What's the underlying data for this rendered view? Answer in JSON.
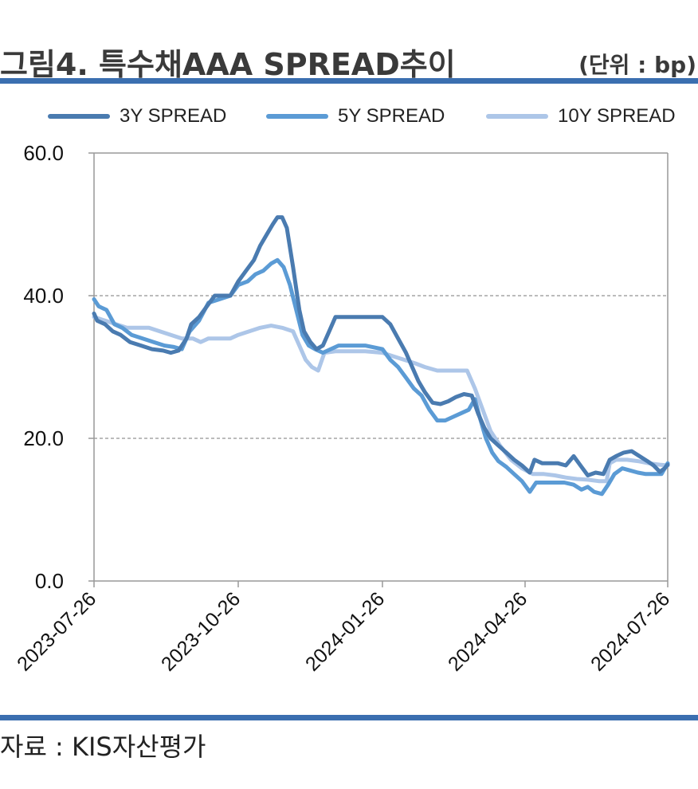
{
  "header": {
    "title": "그림4. 특수채AAA SPREAD추이",
    "unit": "(단위 : bp)"
  },
  "source": "자료 : KIS자산평가",
  "chart_data": {
    "type": "line",
    "ylim": [
      0,
      60
    ],
    "yticks": [
      "0.0",
      "20.0",
      "40.0",
      "60.0"
    ],
    "xticks": [
      "2023-07-26",
      "2023-10-26",
      "2024-01-26",
      "2024-04-26",
      "2024-07-26"
    ],
    "grid": "horizontal dashed at 20 and 40",
    "legend": "top",
    "x_start": "2023-07-26",
    "x_end": "2024-07-26",
    "series": [
      {
        "name": "3Y SPREAD",
        "color": "#4a7bb0",
        "points": [
          [
            "2023-07-26",
            37.5
          ],
          [
            "2023-07-28",
            36.5
          ],
          [
            "2023-08-02",
            36.0
          ],
          [
            "2023-08-07",
            35.0
          ],
          [
            "2023-08-12",
            34.5
          ],
          [
            "2023-08-18",
            33.5
          ],
          [
            "2023-08-25",
            33.0
          ],
          [
            "2023-09-01",
            32.5
          ],
          [
            "2023-09-08",
            32.3
          ],
          [
            "2023-09-13",
            32.0
          ],
          [
            "2023-09-18",
            32.3
          ],
          [
            "2023-09-23",
            34.0
          ],
          [
            "2023-09-26",
            36.0
          ],
          [
            "2023-10-01",
            37.0
          ],
          [
            "2023-10-06",
            38.5
          ],
          [
            "2023-10-11",
            40.0
          ],
          [
            "2023-10-16",
            40.0
          ],
          [
            "2023-10-21",
            40.0
          ],
          [
            "2023-10-26",
            42.0
          ],
          [
            "2023-10-31",
            43.5
          ],
          [
            "2023-11-05",
            45.0
          ],
          [
            "2023-11-09",
            47.0
          ],
          [
            "2023-11-13",
            48.5
          ],
          [
            "2023-11-17",
            50.0
          ],
          [
            "2023-11-20",
            51.0
          ],
          [
            "2023-11-23",
            51.0
          ],
          [
            "2023-11-26",
            49.5
          ],
          [
            "2023-11-30",
            44.0
          ],
          [
            "2023-12-04",
            38.0
          ],
          [
            "2023-12-07",
            35.0
          ],
          [
            "2023-12-11",
            33.5
          ],
          [
            "2023-12-15",
            32.5
          ],
          [
            "2023-12-19",
            33.0
          ],
          [
            "2023-12-23",
            35.0
          ],
          [
            "2023-12-27",
            37.0
          ],
          [
            "2024-01-01",
            37.0
          ],
          [
            "2024-01-10",
            37.0
          ],
          [
            "2024-01-19",
            37.0
          ],
          [
            "2024-01-26",
            37.0
          ],
          [
            "2024-01-31",
            36.0
          ],
          [
            "2024-02-05",
            34.0
          ],
          [
            "2024-02-10",
            32.0
          ],
          [
            "2024-02-14",
            30.0
          ],
          [
            "2024-02-18",
            28.0
          ],
          [
            "2024-02-22",
            26.5
          ],
          [
            "2024-02-27",
            25.0
          ],
          [
            "2024-03-03",
            24.8
          ],
          [
            "2024-03-08",
            25.2
          ],
          [
            "2024-03-13",
            25.8
          ],
          [
            "2024-03-18",
            26.2
          ],
          [
            "2024-03-23",
            26.0
          ],
          [
            "2024-03-27",
            23.5
          ],
          [
            "2024-03-31",
            21.5
          ],
          [
            "2024-04-04",
            20.0
          ],
          [
            "2024-04-09",
            19.0
          ],
          [
            "2024-04-14",
            18.0
          ],
          [
            "2024-04-19",
            17.0
          ],
          [
            "2024-04-24",
            16.2
          ],
          [
            "2024-04-29",
            15.2
          ],
          [
            "2024-05-02",
            17.0
          ],
          [
            "2024-05-07",
            16.5
          ],
          [
            "2024-05-12",
            16.5
          ],
          [
            "2024-05-17",
            16.5
          ],
          [
            "2024-05-22",
            16.2
          ],
          [
            "2024-05-27",
            17.5
          ],
          [
            "2024-06-01",
            16.0
          ],
          [
            "2024-06-05",
            14.8
          ],
          [
            "2024-06-10",
            15.2
          ],
          [
            "2024-06-15",
            15.0
          ],
          [
            "2024-06-19",
            17.0
          ],
          [
            "2024-06-23",
            17.5
          ],
          [
            "2024-06-28",
            18.0
          ],
          [
            "2024-07-03",
            18.2
          ],
          [
            "2024-07-08",
            17.5
          ],
          [
            "2024-07-13",
            16.8
          ],
          [
            "2024-07-17",
            16.2
          ],
          [
            "2024-07-21",
            15.3
          ],
          [
            "2024-07-24",
            15.8
          ],
          [
            "2024-07-26",
            16.3
          ]
        ]
      },
      {
        "name": "5Y SPREAD",
        "color": "#5b9bd5",
        "points": [
          [
            "2023-07-26",
            39.5
          ],
          [
            "2023-07-29",
            38.5
          ],
          [
            "2023-08-03",
            38.0
          ],
          [
            "2023-08-08",
            36.0
          ],
          [
            "2023-08-13",
            35.5
          ],
          [
            "2023-08-19",
            34.5
          ],
          [
            "2023-08-26",
            34.0
          ],
          [
            "2023-09-02",
            33.5
          ],
          [
            "2023-09-09",
            33.0
          ],
          [
            "2023-09-15",
            32.8
          ],
          [
            "2023-09-20",
            32.5
          ],
          [
            "2023-09-25",
            35.0
          ],
          [
            "2023-10-01",
            36.5
          ],
          [
            "2023-10-07",
            39.0
          ],
          [
            "2023-10-14",
            39.5
          ],
          [
            "2023-10-21",
            40.0
          ],
          [
            "2023-10-26",
            41.5
          ],
          [
            "2023-11-01",
            42.0
          ],
          [
            "2023-11-06",
            43.0
          ],
          [
            "2023-11-11",
            43.5
          ],
          [
            "2023-11-16",
            44.5
          ],
          [
            "2023-11-20",
            45.0
          ],
          [
            "2023-11-24",
            44.0
          ],
          [
            "2023-11-28",
            41.5
          ],
          [
            "2023-12-02",
            38.0
          ],
          [
            "2023-12-06",
            34.5
          ],
          [
            "2023-12-10",
            33.0
          ],
          [
            "2023-12-14",
            32.5
          ],
          [
            "2023-12-19",
            32.0
          ],
          [
            "2023-12-24",
            32.5
          ],
          [
            "2023-12-29",
            33.0
          ],
          [
            "2024-01-05",
            33.0
          ],
          [
            "2024-01-15",
            33.0
          ],
          [
            "2024-01-26",
            32.5
          ],
          [
            "2024-01-31",
            31.0
          ],
          [
            "2024-02-05",
            30.0
          ],
          [
            "2024-02-10",
            28.5
          ],
          [
            "2024-02-15",
            27.0
          ],
          [
            "2024-02-20",
            26.0
          ],
          [
            "2024-02-25",
            24.0
          ],
          [
            "2024-03-01",
            22.5
          ],
          [
            "2024-03-06",
            22.5
          ],
          [
            "2024-03-11",
            23.0
          ],
          [
            "2024-03-16",
            23.5
          ],
          [
            "2024-03-21",
            24.0
          ],
          [
            "2024-03-25",
            25.5
          ],
          [
            "2024-03-28",
            23.0
          ],
          [
            "2024-04-01",
            20.0
          ],
          [
            "2024-04-05",
            18.0
          ],
          [
            "2024-04-09",
            16.8
          ],
          [
            "2024-04-14",
            16.0
          ],
          [
            "2024-04-19",
            15.0
          ],
          [
            "2024-04-24",
            14.0
          ],
          [
            "2024-04-29",
            12.5
          ],
          [
            "2024-05-03",
            13.8
          ],
          [
            "2024-05-09",
            13.8
          ],
          [
            "2024-05-15",
            13.8
          ],
          [
            "2024-05-21",
            13.8
          ],
          [
            "2024-05-27",
            13.5
          ],
          [
            "2024-06-01",
            12.8
          ],
          [
            "2024-06-05",
            13.2
          ],
          [
            "2024-06-09",
            12.5
          ],
          [
            "2024-06-14",
            12.2
          ],
          [
            "2024-06-18",
            13.5
          ],
          [
            "2024-06-22",
            15.0
          ],
          [
            "2024-06-27",
            15.8
          ],
          [
            "2024-07-02",
            15.5
          ],
          [
            "2024-07-07",
            15.2
          ],
          [
            "2024-07-12",
            15.0
          ],
          [
            "2024-07-17",
            15.0
          ],
          [
            "2024-07-22",
            15.0
          ],
          [
            "2024-07-26",
            16.5
          ]
        ]
      },
      {
        "name": "10Y SPREAD",
        "color": "#adc6e8",
        "points": [
          [
            "2023-07-26",
            37.0
          ],
          [
            "2023-08-02",
            36.5
          ],
          [
            "2023-08-09",
            36.0
          ],
          [
            "2023-08-16",
            35.5
          ],
          [
            "2023-08-23",
            35.5
          ],
          [
            "2023-08-30",
            35.5
          ],
          [
            "2023-09-06",
            35.0
          ],
          [
            "2023-09-13",
            34.5
          ],
          [
            "2023-09-20",
            34.0
          ],
          [
            "2023-09-27",
            34.0
          ],
          [
            "2023-10-02",
            33.5
          ],
          [
            "2023-10-07",
            34.0
          ],
          [
            "2023-10-14",
            34.0
          ],
          [
            "2023-10-21",
            34.0
          ],
          [
            "2023-10-26",
            34.5
          ],
          [
            "2023-11-02",
            35.0
          ],
          [
            "2023-11-09",
            35.5
          ],
          [
            "2023-11-16",
            35.8
          ],
          [
            "2023-11-23",
            35.5
          ],
          [
            "2023-11-30",
            35.0
          ],
          [
            "2023-12-04",
            33.0
          ],
          [
            "2023-12-08",
            31.0
          ],
          [
            "2023-12-12",
            30.0
          ],
          [
            "2023-12-16",
            29.5
          ],
          [
            "2023-12-20",
            32.0
          ],
          [
            "2023-12-27",
            32.2
          ],
          [
            "2024-01-05",
            32.2
          ],
          [
            "2024-01-15",
            32.2
          ],
          [
            "2024-01-26",
            32.0
          ],
          [
            "2024-02-02",
            31.5
          ],
          [
            "2024-02-09",
            31.0
          ],
          [
            "2024-02-16",
            30.5
          ],
          [
            "2024-02-22",
            30.0
          ],
          [
            "2024-03-01",
            29.5
          ],
          [
            "2024-03-10",
            29.5
          ],
          [
            "2024-03-20",
            29.5
          ],
          [
            "2024-03-25",
            27.0
          ],
          [
            "2024-03-30",
            24.0
          ],
          [
            "2024-04-04",
            21.0
          ],
          [
            "2024-04-10",
            19.0
          ],
          [
            "2024-04-17",
            17.0
          ],
          [
            "2024-04-24",
            15.8
          ],
          [
            "2024-05-01",
            15.0
          ],
          [
            "2024-05-08",
            15.0
          ],
          [
            "2024-05-15",
            14.8
          ],
          [
            "2024-05-22",
            14.5
          ],
          [
            "2024-05-29",
            14.3
          ],
          [
            "2024-06-05",
            14.2
          ],
          [
            "2024-06-12",
            14.0
          ],
          [
            "2024-06-17",
            14.0
          ],
          [
            "2024-06-19",
            16.5
          ],
          [
            "2024-06-23",
            17.0
          ],
          [
            "2024-06-30",
            17.0
          ],
          [
            "2024-07-07",
            16.8
          ],
          [
            "2024-07-14",
            16.5
          ],
          [
            "2024-07-21",
            16.3
          ],
          [
            "2024-07-26",
            16.2
          ]
        ]
      }
    ]
  }
}
